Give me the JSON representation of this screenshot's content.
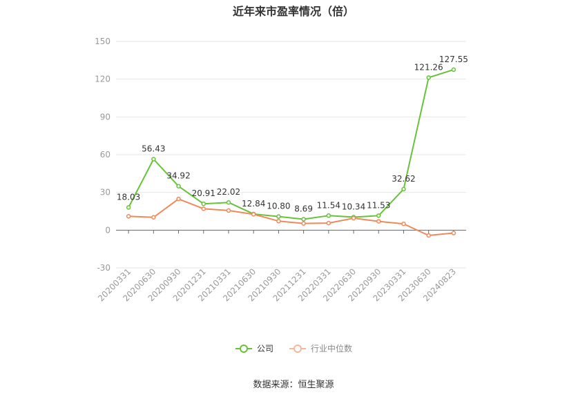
{
  "title": "近年来市盈率情况（倍）",
  "source": "数据来源：恒生聚源",
  "colors": {
    "company": "#67c23a",
    "industry": "#f0885a",
    "grid": "#e6e6e6",
    "axis": "#666666",
    "tick": "#999999"
  },
  "chart_data": {
    "type": "line",
    "title": "近年来市盈率情况（倍）",
    "xlabel": "",
    "ylabel": "",
    "ylim": [
      -30,
      150
    ],
    "yticks": [
      -30,
      0,
      30,
      60,
      90,
      120,
      150
    ],
    "grid": true,
    "legend_position": "bottom",
    "categories": [
      "20200331",
      "20200630",
      "20200930",
      "20201231",
      "20210331",
      "20210630",
      "20210930",
      "20211231",
      "20220331",
      "20220630",
      "20220930",
      "20230331",
      "20230630",
      "20240823"
    ],
    "series": [
      {
        "name": "公司",
        "color": "#67c23a",
        "show_labels": true,
        "values": [
          18.03,
          56.43,
          34.92,
          20.91,
          22.02,
          12.84,
          10.8,
          8.69,
          11.54,
          10.34,
          11.53,
          32.62,
          121.26,
          127.55
        ]
      },
      {
        "name": "行业中位数",
        "color": "#f0885a",
        "show_labels": false,
        "values": [
          11.0,
          10.2,
          24.8,
          17.0,
          15.6,
          12.6,
          7.2,
          5.3,
          5.6,
          9.5,
          7.0,
          5.0,
          -4.2,
          -2.3
        ]
      }
    ],
    "value_labels": [
      "18.03",
      "56.43",
      "34.92",
      "20.91",
      "22.02",
      "12.84",
      "10.80",
      "8.69",
      "11.54",
      "10.34",
      "11.53",
      "32.62",
      "121.26",
      "127.55"
    ]
  }
}
